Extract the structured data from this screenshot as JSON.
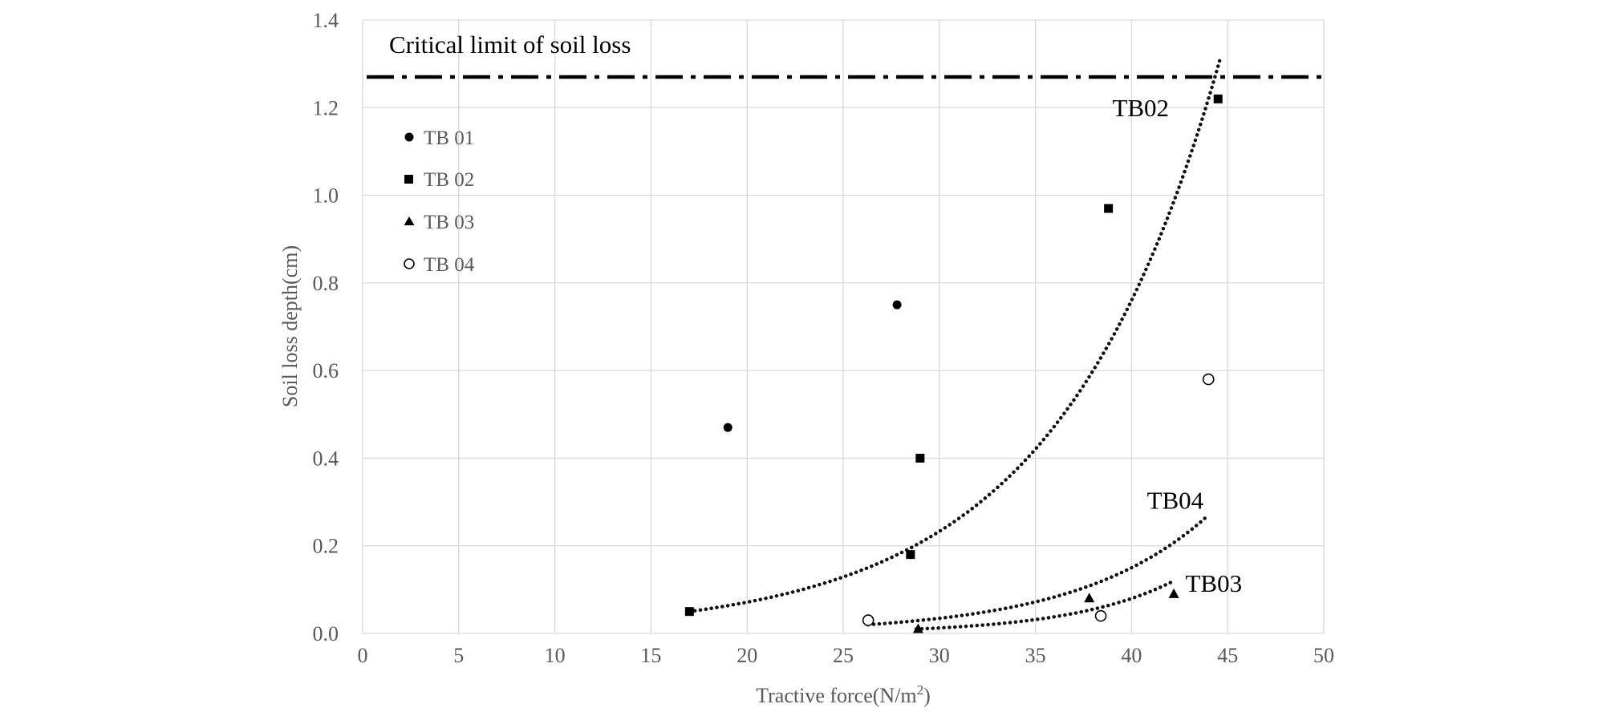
{
  "chart_data": {
    "type": "scatter",
    "title": "",
    "xlabel": "Tractive force(N/m",
    "xlabel_sup": "2",
    "xlabel_close": ")",
    "ylabel": "Soil loss depth(cm)",
    "xlim": [
      0,
      50
    ],
    "ylim": [
      0,
      1.4
    ],
    "x_ticks": [
      "0",
      "5",
      "10",
      "15",
      "20",
      "25",
      "30",
      "35",
      "40",
      "45",
      "50"
    ],
    "y_ticks": [
      "0.0",
      "0.2",
      "0.4",
      "0.6",
      "0.8",
      "1.0",
      "1.2",
      "1.4"
    ],
    "grid": true,
    "legend_position": "upper-left",
    "series": [
      {
        "name": "TB 01",
        "marker": "filled-circle",
        "x": [
          19.0,
          27.8
        ],
        "y": [
          0.47,
          0.75
        ]
      },
      {
        "name": "TB 02",
        "marker": "filled-square",
        "x": [
          17.0,
          28.5,
          29.0,
          38.8,
          44.5
        ],
        "y": [
          0.05,
          0.18,
          0.4,
          0.97,
          1.22
        ]
      },
      {
        "name": "TB 03",
        "marker": "filled-triangle",
        "x": [
          28.9,
          37.8,
          42.2
        ],
        "y": [
          0.01,
          0.08,
          0.09
        ]
      },
      {
        "name": "TB 04",
        "marker": "open-circle",
        "x": [
          26.3,
          38.4,
          44.0
        ],
        "y": [
          0.03,
          0.04,
          0.58
        ]
      }
    ],
    "trendlines": [
      {
        "name": "TB02",
        "type": "exponential",
        "x_range": [
          17.0,
          44.6
        ],
        "y_start": 0.05,
        "y_end": 1.31
      },
      {
        "name": "TB04",
        "type": "exponential",
        "x_range": [
          26.3,
          44.0
        ],
        "y_start": 0.02,
        "y_end": 0.27
      },
      {
        "name": "TB03",
        "type": "exponential",
        "x_range": [
          28.8,
          42.2
        ],
        "y_start": 0.01,
        "y_end": 0.12
      }
    ],
    "reference_line": {
      "label": "Critical limit of soil loss",
      "y": 1.27
    }
  }
}
